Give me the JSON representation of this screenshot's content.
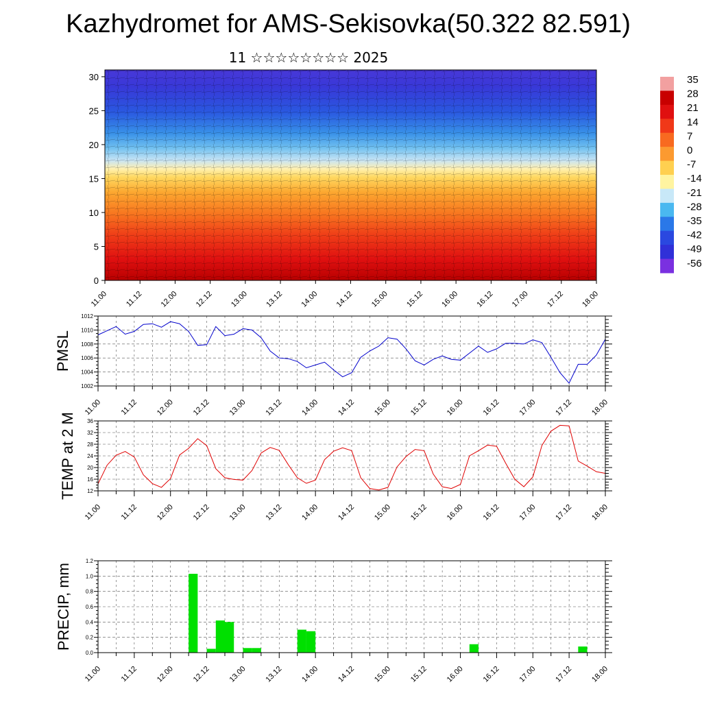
{
  "header": {
    "title": "Kazhydromet for AMS-Sekisovka(50.322 82.591)",
    "subtitle": "11 ☆☆☆☆☆☆☆☆ 2025"
  },
  "colors": {
    "pmsl_line": "#0000cc",
    "temp_line": "#e00000",
    "precip_bar": "#00e000",
    "grid": "#555555"
  },
  "colorbar": {
    "labels": [
      "35",
      "28",
      "21",
      "14",
      "7",
      "0",
      "-7",
      "-14",
      "-21",
      "-28",
      "-35",
      "-42",
      "-49",
      "-56"
    ],
    "colors": [
      "#f2a0a0",
      "#c80000",
      "#e01010",
      "#f03818",
      "#f86a20",
      "#fc9a30",
      "#ffd050",
      "#fff4a0",
      "#c8e8f8",
      "#4ab8f0",
      "#2a78e8",
      "#2a48e0",
      "#3030d8",
      "#7a30e0"
    ]
  },
  "chart_data": [
    {
      "type": "heatmap",
      "name": "vertical-profile",
      "x_tick_labels": [
        "11.00",
        "11.12",
        "12.00",
        "12.12",
        "13.00",
        "13.12",
        "14.00",
        "14.12",
        "15.00",
        "15.12",
        "16.00",
        "16.12",
        "17.00",
        "17.12",
        "18.00"
      ],
      "y_tick_labels": [
        "0",
        "5",
        "10",
        "15",
        "20",
        "25",
        "30"
      ],
      "ylim": [
        0,
        31
      ],
      "colorbar_range": [
        -56,
        35
      ]
    },
    {
      "type": "line",
      "name": "pmsl",
      "ylabel": "PMSL",
      "ylim": [
        1002,
        1012
      ],
      "y_ticks": [
        1002,
        1004,
        1006,
        1008,
        1010,
        1012
      ],
      "x_tick_labels": [
        "11.00",
        "11.12",
        "12.00",
        "12.12",
        "13.00",
        "13.12",
        "14.00",
        "14.12",
        "15.00",
        "15.12",
        "16.00",
        "16.12",
        "17.00",
        "17.12",
        "18.00"
      ],
      "x_range_hours": [
        0,
        168
      ],
      "step_hours": 3,
      "values": [
        1009.3,
        1009.9,
        1010.5,
        1009.4,
        1009.8,
        1010.8,
        1010.9,
        1010.4,
        1011.2,
        1010.9,
        1009.8,
        1007.8,
        1007.9,
        1010.5,
        1009.2,
        1009.4,
        1010.2,
        1010.0,
        1008.9,
        1007.0,
        1006.0,
        1005.9,
        1005.5,
        1004.6,
        1005.0,
        1005.4,
        1004.3,
        1003.3,
        1003.9,
        1006.1,
        1007.0,
        1007.7,
        1008.9,
        1008.7,
        1007.3,
        1005.6,
        1005.0,
        1005.8,
        1006.3,
        1005.8,
        1005.7,
        1006.7,
        1007.7,
        1006.8,
        1007.3,
        1008.1,
        1008.1,
        1008.0,
        1008.6,
        1008.2,
        1006.1,
        1003.9,
        1002.4,
        1005.1,
        1005.1,
        1006.4,
        1008.7
      ]
    },
    {
      "type": "line",
      "name": "temp-2m",
      "ylabel": "TEMP at 2 M",
      "ylim": [
        12,
        36
      ],
      "y_ticks": [
        12,
        16,
        20,
        24,
        28,
        32,
        36
      ],
      "x_tick_labels": [
        "11.00",
        "11.12",
        "12.00",
        "12.12",
        "13.00",
        "13.12",
        "14.00",
        "14.12",
        "15.00",
        "15.12",
        "16.00",
        "16.12",
        "17.00",
        "17.12",
        "18.00"
      ],
      "x_range_hours": [
        0,
        168
      ],
      "step_hours": 3,
      "values": [
        14.4,
        20.8,
        24.2,
        25.5,
        23.6,
        17.5,
        14.5,
        13.2,
        16.2,
        24.3,
        26.6,
        29.9,
        27.5,
        19.6,
        16.5,
        15.9,
        15.7,
        19.0,
        25.0,
        26.9,
        25.9,
        21.0,
        16.5,
        14.6,
        15.7,
        22.7,
        25.6,
        26.8,
        25.8,
        16.5,
        12.8,
        12.3,
        13.2,
        20.2,
        23.8,
        26.2,
        25.8,
        17.8,
        13.4,
        12.8,
        14.2,
        24.0,
        25.8,
        27.7,
        27.3,
        21.5,
        16.0,
        13.4,
        16.8,
        27.6,
        32.5,
        34.5,
        34.3,
        22.2,
        20.5,
        18.6,
        18.0
      ]
    },
    {
      "type": "bar",
      "name": "precip",
      "ylabel": "PRECIP, mm",
      "ylim": [
        0,
        1.2
      ],
      "y_ticks": [
        0.0,
        0.2,
        0.4,
        0.6,
        0.8,
        1.0,
        1.2
      ],
      "x_tick_labels": [
        "11.00",
        "11.12",
        "12.00",
        "12.12",
        "13.00",
        "13.12",
        "14.00",
        "14.12",
        "15.00",
        "15.12",
        "16.00",
        "16.12",
        "17.00",
        "17.12",
        "18.00"
      ],
      "x_range_hours": [
        0,
        168
      ],
      "bar_width_hours": 3,
      "bars": [
        {
          "start_hour": 30,
          "value": 1.03
        },
        {
          "start_hour": 36,
          "value": 0.05
        },
        {
          "start_hour": 39,
          "value": 0.42
        },
        {
          "start_hour": 42,
          "value": 0.4
        },
        {
          "start_hour": 48,
          "value": 0.06
        },
        {
          "start_hour": 51,
          "value": 0.06
        },
        {
          "start_hour": 66,
          "value": 0.3
        },
        {
          "start_hour": 69,
          "value": 0.28
        },
        {
          "start_hour": 123,
          "value": 0.11
        },
        {
          "start_hour": 159,
          "value": 0.08
        }
      ]
    }
  ]
}
